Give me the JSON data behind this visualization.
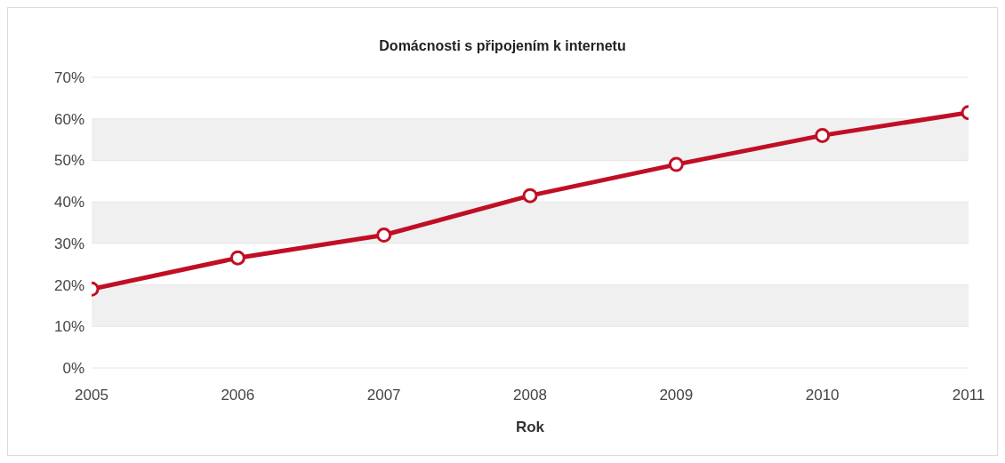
{
  "chart_data": {
    "type": "line",
    "title": "Domácnosti s připojením k internetu",
    "xlabel": "Rok",
    "x": [
      2005,
      2006,
      2007,
      2008,
      2009,
      2010,
      2011
    ],
    "series": [
      {
        "color": "#c00f24",
        "values": [
          19,
          26.5,
          32,
          41.5,
          49,
          56,
          61.5
        ]
      }
    ],
    "xlim": [
      2005,
      2011
    ],
    "xticks": [
      2005,
      2006,
      2007,
      2008,
      2009,
      2010,
      2011
    ],
    "ylim": [
      0,
      70
    ],
    "yticks": [
      {
        "value": 0,
        "label": "0%"
      },
      {
        "value": 10,
        "label": "10%"
      },
      {
        "value": 20,
        "label": "20%"
      },
      {
        "value": 30,
        "label": "30%"
      },
      {
        "value": 40,
        "label": "40%"
      },
      {
        "value": 50,
        "label": "50%"
      },
      {
        "value": 60,
        "label": "60%"
      },
      {
        "value": 70,
        "label": "70%"
      }
    ],
    "grid": "y",
    "marker": "circle",
    "line_style": "solid",
    "legend": false
  }
}
